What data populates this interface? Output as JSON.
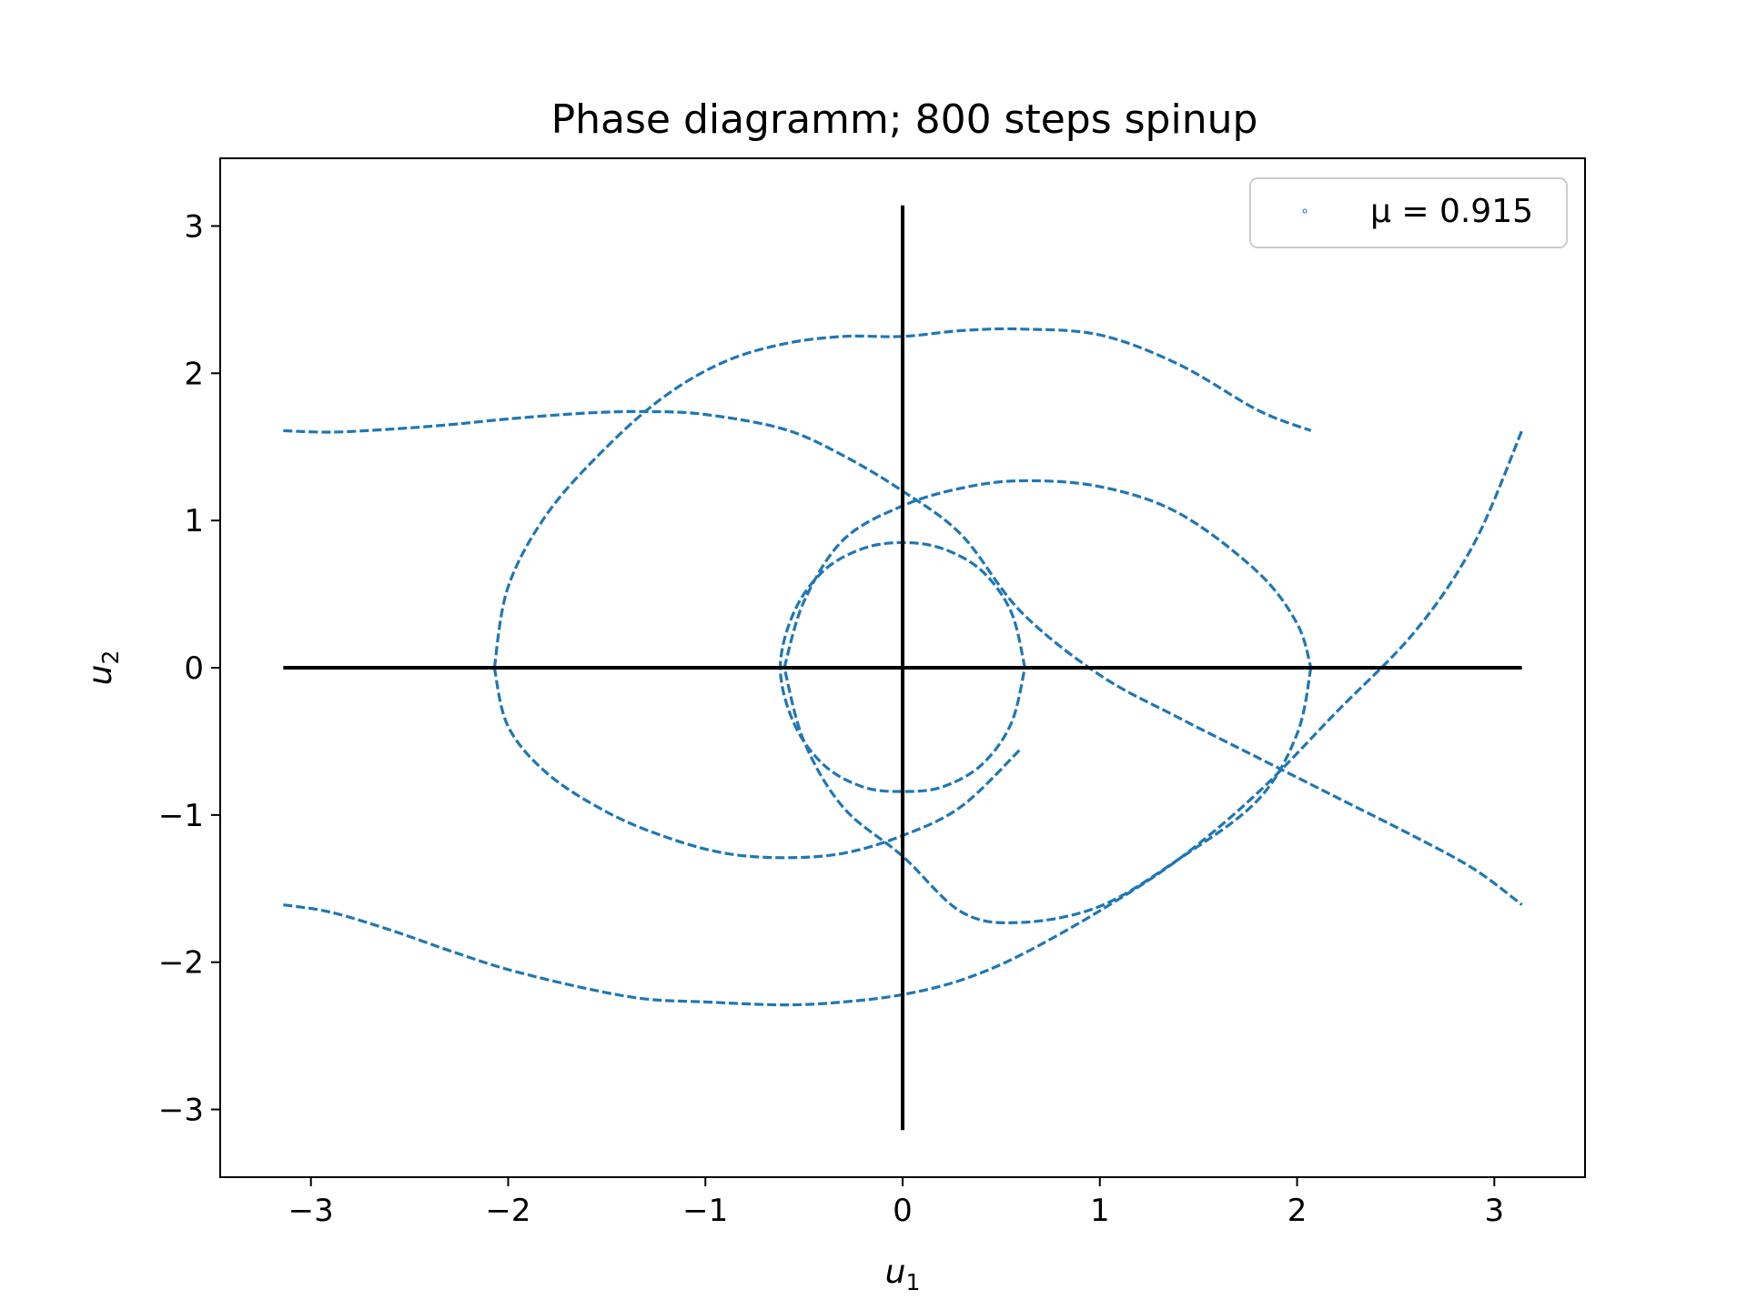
{
  "chart_data": {
    "type": "scatter",
    "title": "Phase diagramm; 800 steps spinup",
    "xlabel": "u",
    "xlabel_sub": "1",
    "ylabel": "u",
    "ylabel_sub": "2",
    "xlim": [
      -3.46,
      3.46
    ],
    "ylim": [
      -3.46,
      3.46
    ],
    "xticks": [
      -3,
      -2,
      -1,
      0,
      1,
      2,
      3
    ],
    "yticks": [
      -3,
      -2,
      -1,
      0,
      1,
      2,
      3
    ],
    "xtick_labels": [
      "−3",
      "−2",
      "−1",
      "0",
      "1",
      "2",
      "3"
    ],
    "ytick_labels": [
      "−3",
      "−2",
      "−1",
      "0",
      "1",
      "2",
      "3"
    ],
    "grid": false,
    "legend": {
      "label": "μ = 0.915",
      "placement": "top-right"
    },
    "colors": {
      "series": "#1f77b4",
      "reference_lines": "#000000"
    },
    "reference_lines": [
      {
        "x": [
          -3.14,
          3.14
        ],
        "y": [
          0,
          0
        ]
      },
      {
        "x": [
          0,
          0
        ],
        "y": [
          -3.14,
          3.14
        ]
      }
    ],
    "series": [
      {
        "name": "μ = 0.915",
        "curves": [
          {
            "x": [
              -3.14,
              -2.9,
              -2.6,
              -2.3,
              -2.0,
              -1.6,
              -1.3,
              -1.0,
              -0.6,
              -0.3,
              0.0,
              0.3,
              0.6,
              1.0,
              1.4,
              1.8,
              2.2,
              2.6,
              2.9,
              3.14
            ],
            "y": [
              1.61,
              1.6,
              1.62,
              1.65,
              1.69,
              1.73,
              1.74,
              1.72,
              1.62,
              1.44,
              1.2,
              0.9,
              0.38,
              -0.05,
              -0.34,
              -0.61,
              -0.88,
              -1.15,
              -1.37,
              -1.61
            ]
          },
          {
            "x": [
              -3.14,
              -2.9,
              -2.6,
              -2.3,
              -2.0,
              -1.6,
              -1.3,
              -1.0,
              -0.6,
              -0.3,
              0.0,
              0.3,
              0.6,
              1.0,
              1.4,
              1.8,
              2.2,
              2.6,
              2.9,
              3.14
            ],
            "y": [
              -1.61,
              -1.66,
              -1.78,
              -1.92,
              -2.05,
              -2.18,
              -2.25,
              -2.27,
              -2.29,
              -2.27,
              -2.22,
              -2.12,
              -1.95,
              -1.65,
              -1.3,
              -0.85,
              -0.3,
              0.25,
              0.85,
              1.61
            ]
          },
          {
            "x": [
              -2.07,
              -2.0,
              -1.8,
              -1.5,
              -1.2,
              -0.9,
              -0.6,
              -0.3,
              0.0,
              0.3,
              0.6,
              1.0,
              1.4,
              1.8,
              2.07
            ],
            "y": [
              0.0,
              0.55,
              1.05,
              1.5,
              1.85,
              2.08,
              2.2,
              2.25,
              2.25,
              2.29,
              2.3,
              2.26,
              2.06,
              1.75,
              1.61
            ]
          },
          {
            "x": [
              -2.07,
              -2.0,
              -1.8,
              -1.5,
              -1.2,
              -0.9,
              -0.6,
              -0.3,
              0.0,
              0.3,
              0.6
            ],
            "y": [
              0.0,
              -0.4,
              -0.72,
              -0.98,
              -1.15,
              -1.26,
              -1.29,
              -1.26,
              -1.14,
              -0.94,
              -0.55
            ]
          },
          {
            "x": [
              -0.6,
              -0.5,
              -0.3,
              0.0,
              0.3,
              0.6,
              1.0,
              1.4,
              1.8,
              2.0,
              2.07
            ],
            "y": [
              0.0,
              0.45,
              0.87,
              1.1,
              1.22,
              1.27,
              1.23,
              1.05,
              0.65,
              0.3,
              0.0
            ]
          },
          {
            "x": [
              2.07,
              2.0,
              1.8,
              1.4,
              1.0,
              0.6,
              0.3,
              0.0,
              -0.3,
              -0.5,
              -0.6
            ],
            "y": [
              0.0,
              -0.45,
              -0.9,
              -1.3,
              -1.62,
              -1.73,
              -1.66,
              -1.28,
              -0.95,
              -0.5,
              0.0
            ]
          },
          {
            "x": [
              0.62,
              0.55,
              0.4,
              0.2,
              0.0,
              -0.2,
              -0.4,
              -0.55,
              -0.62,
              -0.55,
              -0.4,
              -0.2,
              0.0,
              0.2,
              0.4,
              0.55,
              0.62
            ],
            "y": [
              0.0,
              0.38,
              0.66,
              0.81,
              0.85,
              0.81,
              0.66,
              0.38,
              0.0,
              -0.38,
              -0.66,
              -0.81,
              -0.84,
              -0.81,
              -0.66,
              -0.38,
              0.0
            ]
          }
        ]
      }
    ]
  }
}
